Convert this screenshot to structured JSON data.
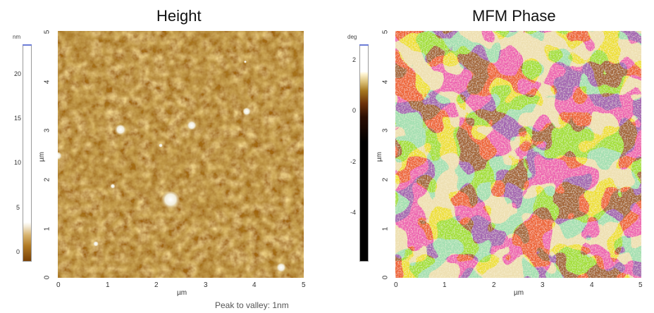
{
  "height_panel": {
    "title": "Height",
    "colorbar": {
      "unit": "nm",
      "ticks": [
        "20",
        "15",
        "10",
        "5",
        "0"
      ]
    },
    "y_axis": {
      "label": "µm",
      "ticks": [
        "5",
        "4",
        "3",
        "2",
        "1",
        "0"
      ]
    },
    "x_axis": {
      "label": "µm",
      "ticks": [
        "0",
        "1",
        "2",
        "3",
        "4",
        "5"
      ]
    },
    "colors": {
      "base": "#a36a0c",
      "dark": "#6e3d05",
      "light": "#d8a850",
      "particle": "#f3f1e6"
    }
  },
  "phase_panel": {
    "title": "MFM Phase",
    "colorbar": {
      "unit": "deg",
      "ticks": [
        "2",
        "0",
        "-2",
        "-4"
      ]
    },
    "y_axis": {
      "label": "µm",
      "ticks": [
        "5",
        "4",
        "3",
        "2",
        "1",
        "0"
      ]
    },
    "x_axis": {
      "label": "µm",
      "ticks": [
        "0",
        "1",
        "2",
        "3",
        "4",
        "5"
      ]
    },
    "colors": {
      "dark": "#5a1d05",
      "light": "#d8bb6e",
      "highlight": "#fff2c6"
    }
  },
  "footer": {
    "peak_to_valley": "Peak to valley: 1nm"
  }
}
